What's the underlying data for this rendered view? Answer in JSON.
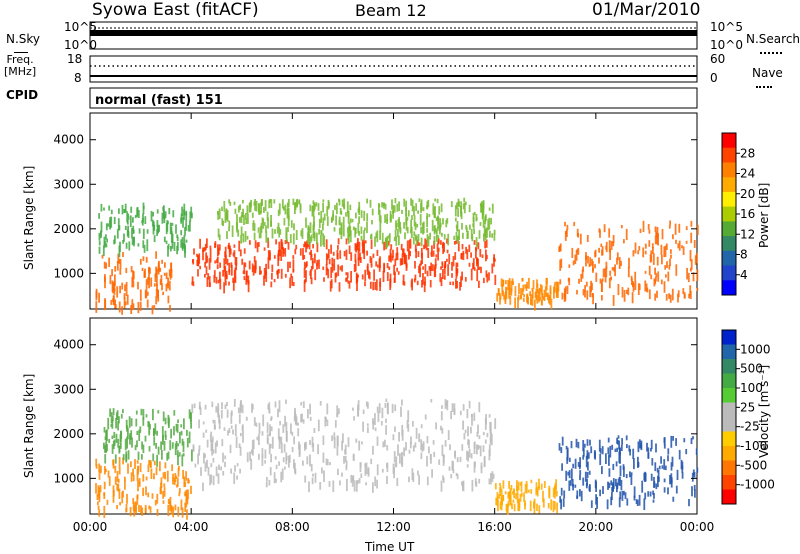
{
  "header": {
    "station": "Syowa East (fitACF)",
    "beam": "Beam 12",
    "date": "01/Mar/2010"
  },
  "status_panels": {
    "nsky_label": "N.Sky",
    "nsearch_label": "N.Search",
    "noise_ticks_left": [
      "10^5",
      "10^0"
    ],
    "noise_ticks_right": [
      "10^5",
      "10^0"
    ],
    "freq_label_line1": "Freq.",
    "freq_label_line2": "[MHz]",
    "freq_ticks": [
      "18",
      "8"
    ],
    "nave_ticks": [
      "60",
      "0"
    ],
    "nave_label": "Nave",
    "cpid_label": "CPID",
    "cpid_mode": "normal (fast) 151"
  },
  "chart_data": [
    {
      "type": "heatmap",
      "name": "power",
      "ylabel": "Slant Range [km]",
      "yticks": [
        "4000",
        "3000",
        "2000",
        "1000"
      ],
      "ylim": [
        200,
        4600
      ],
      "xlim": [
        "00:00",
        "24:00"
      ],
      "colorbar_label": "Power [dB]",
      "colorbar_ticks": [
        "28",
        "24",
        "20",
        "16",
        "12",
        "8",
        "4"
      ],
      "colorbar_colors": [
        "#ff0000",
        "#ff4400",
        "#ff7f00",
        "#ffaa00",
        "#ffee00",
        "#aacc00",
        "#55aa33",
        "#338866",
        "#2266aa",
        "#2244cc",
        "#0000ff"
      ],
      "scatter_bands": [
        {
          "t0": 0.2,
          "t1": 3.2,
          "r0": 250,
          "r1": 1500,
          "color": "#ff6600"
        },
        {
          "t0": 0.3,
          "t1": 4.0,
          "r0": 1600,
          "r1": 2600,
          "color": "#44aa44"
        },
        {
          "t0": 4.0,
          "t1": 16.0,
          "r0": 800,
          "r1": 1800,
          "color": "#ff3300"
        },
        {
          "t0": 5.0,
          "t1": 16.0,
          "r0": 1800,
          "r1": 2700,
          "color": "#77bb33"
        },
        {
          "t0": 16.0,
          "t1": 18.5,
          "r0": 400,
          "r1": 900,
          "color": "#ff8800"
        },
        {
          "t0": 18.5,
          "t1": 24.0,
          "r0": 500,
          "r1": 2200,
          "color": "#ff6600"
        }
      ]
    },
    {
      "type": "heatmap",
      "name": "velocity",
      "ylabel": "Slant Range [km]",
      "yticks": [
        "4000",
        "3000",
        "2000",
        "1000"
      ],
      "ylim": [
        200,
        4600
      ],
      "xlim": [
        "00:00",
        "24:00"
      ],
      "xticks": [
        "00:00",
        "04:00",
        "08:00",
        "12:00",
        "16:00",
        "20:00",
        "00:00"
      ],
      "xlabel": "Time UT",
      "colorbar_label": "Velocity [m s⁻¹]",
      "colorbar_ticks": [
        "1000",
        "500",
        "100",
        "25",
        "-25",
        "-100",
        "-500",
        "-1000"
      ],
      "colorbar_colors": [
        "#0022cc",
        "#2266aa",
        "#338866",
        "#44aa44",
        "#55cc33",
        "#bbbbbb",
        "#bbbbbb",
        "#ffcc00",
        "#ffaa00",
        "#ff7700",
        "#ff4400",
        "#ff0000"
      ],
      "scatter_bands": [
        {
          "t0": 0.2,
          "t1": 4.0,
          "r0": 300,
          "r1": 1500,
          "color": "#ff8800"
        },
        {
          "t0": 0.5,
          "t1": 4.0,
          "r0": 1500,
          "r1": 2600,
          "color": "#55aa44"
        },
        {
          "t0": 4.0,
          "t1": 16.0,
          "r0": 900,
          "r1": 2800,
          "color": "#bbbbbb"
        },
        {
          "t0": 16.0,
          "t1": 18.5,
          "r0": 400,
          "r1": 1000,
          "color": "#ffaa00"
        },
        {
          "t0": 18.5,
          "t1": 24.0,
          "r0": 500,
          "r1": 2000,
          "color": "#2255aa"
        }
      ]
    }
  ]
}
